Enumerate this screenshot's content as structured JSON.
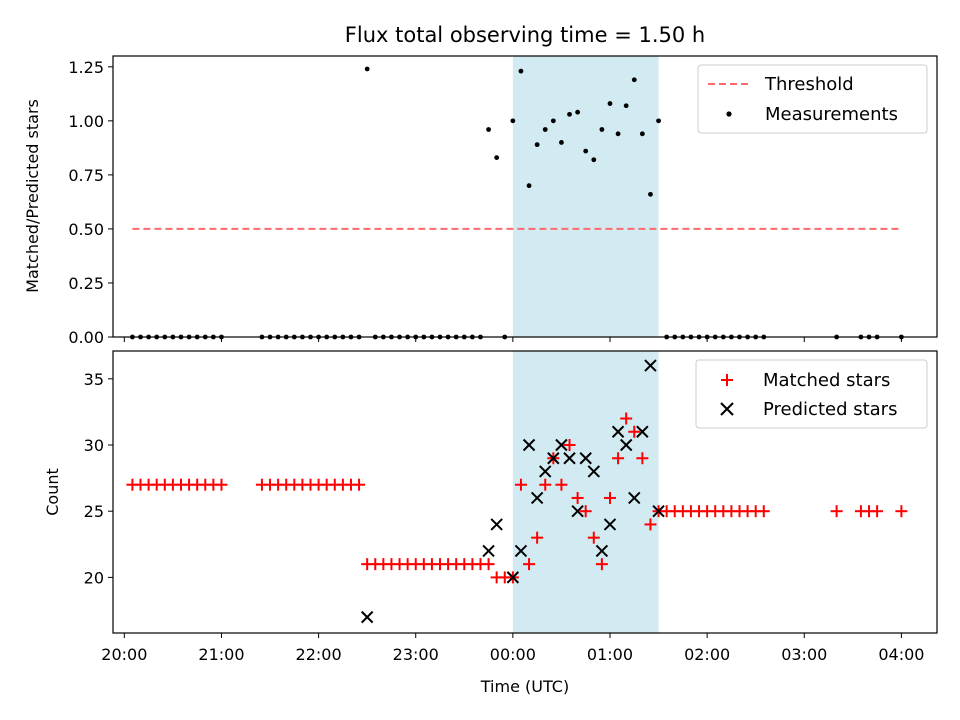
{
  "chart_data": [
    {
      "type": "scatter",
      "title": "Flux total observing time = 1.50 h",
      "ylabel": "Matched/Predicted stars",
      "xlabel": "",
      "xlim": [
        "19:53",
        "04:22"
      ],
      "ylim": [
        0,
        1.3
      ],
      "x_ticks": [
        "20:00",
        "21:00",
        "22:00",
        "23:00",
        "00:00",
        "01:00",
        "02:00",
        "03:00",
        "04:00"
      ],
      "y_ticks": [
        "0.00",
        "0.25",
        "0.50",
        "0.75",
        "1.00",
        "1.25"
      ],
      "legend_position": "top-right",
      "shaded_interval": {
        "start": "00:00",
        "end": "01:30",
        "color": "#add8e6"
      },
      "series": [
        {
          "name": "Threshold",
          "style": "dashed-line",
          "color": "#ff6b6b",
          "x": [
            "20:05",
            "04:00"
          ],
          "values": [
            0.5,
            0.5
          ]
        },
        {
          "name": "Measurements",
          "style": "dot",
          "color": "#000000",
          "x": [
            "20:05",
            "20:10",
            "20:15",
            "20:20",
            "20:25",
            "20:30",
            "20:35",
            "20:40",
            "20:45",
            "20:50",
            "20:55",
            "21:00",
            "21:25",
            "21:30",
            "21:35",
            "21:40",
            "21:45",
            "21:50",
            "21:55",
            "22:00",
            "22:05",
            "22:10",
            "22:15",
            "22:20",
            "22:25",
            "22:30",
            "22:35",
            "22:40",
            "22:45",
            "22:50",
            "22:55",
            "23:00",
            "23:05",
            "23:10",
            "23:15",
            "23:20",
            "23:25",
            "23:30",
            "23:35",
            "23:40",
            "23:45",
            "23:50",
            "23:55",
            "00:00",
            "00:05",
            "00:10",
            "00:15",
            "00:20",
            "00:25",
            "00:30",
            "00:35",
            "00:40",
            "00:45",
            "00:50",
            "00:55",
            "01:00",
            "01:05",
            "01:10",
            "01:15",
            "01:20",
            "01:25",
            "01:30",
            "01:35",
            "01:40",
            "01:45",
            "01:50",
            "01:55",
            "02:00",
            "02:05",
            "02:10",
            "02:15",
            "02:20",
            "02:25",
            "02:30",
            "02:35",
            "03:20",
            "03:35",
            "03:40",
            "03:45",
            "04:00"
          ],
          "values": [
            0,
            0,
            0,
            0,
            0,
            0,
            0,
            0,
            0,
            0,
            0,
            0,
            0,
            0,
            0,
            0,
            0,
            0,
            0,
            0,
            0,
            0,
            0,
            0,
            0,
            1.24,
            0,
            0,
            0,
            0,
            0,
            0,
            0,
            0,
            0,
            0,
            0,
            0,
            0,
            0,
            0.96,
            0.83,
            0,
            1.0,
            1.23,
            0.7,
            0.89,
            0.96,
            1.0,
            0.9,
            1.03,
            1.04,
            0.86,
            0.82,
            0.96,
            1.08,
            0.94,
            1.07,
            1.19,
            0.94,
            0.66,
            1.0,
            0,
            0,
            0,
            0,
            0,
            0,
            0,
            0,
            0,
            0,
            0,
            0,
            0,
            0,
            0,
            0,
            0,
            0
          ]
        }
      ]
    },
    {
      "type": "scatter",
      "title": "",
      "ylabel": "Count",
      "xlabel": "Time (UTC)",
      "xlim": [
        "19:53",
        "04:22"
      ],
      "ylim": [
        15.8,
        37.1
      ],
      "x_ticks": [
        "20:00",
        "21:00",
        "22:00",
        "23:00",
        "00:00",
        "01:00",
        "02:00",
        "03:00",
        "04:00"
      ],
      "y_ticks": [
        "20",
        "25",
        "30",
        "35"
      ],
      "legend_position": "top-right",
      "shaded_interval": {
        "start": "00:00",
        "end": "01:30",
        "color": "#add8e6"
      },
      "series": [
        {
          "name": "Matched stars",
          "marker": "plus",
          "color": "#ff0000",
          "x": [
            "20:05",
            "20:10",
            "20:15",
            "20:20",
            "20:25",
            "20:30",
            "20:35",
            "20:40",
            "20:45",
            "20:50",
            "20:55",
            "21:00",
            "21:25",
            "21:30",
            "21:35",
            "21:40",
            "21:45",
            "21:50",
            "21:55",
            "22:00",
            "22:05",
            "22:10",
            "22:15",
            "22:20",
            "22:25",
            "22:30",
            "22:35",
            "22:40",
            "22:45",
            "22:50",
            "22:55",
            "23:00",
            "23:05",
            "23:10",
            "23:15",
            "23:20",
            "23:25",
            "23:30",
            "23:35",
            "23:40",
            "23:45",
            "23:50",
            "23:55",
            "00:00",
            "00:05",
            "00:10",
            "00:15",
            "00:20",
            "00:25",
            "00:30",
            "00:35",
            "00:40",
            "00:45",
            "00:50",
            "00:55",
            "01:00",
            "01:05",
            "01:10",
            "01:15",
            "01:20",
            "01:25",
            "01:30",
            "01:35",
            "01:40",
            "01:45",
            "01:50",
            "01:55",
            "02:00",
            "02:05",
            "02:10",
            "02:15",
            "02:20",
            "02:25",
            "02:30",
            "02:35",
            "03:20",
            "03:35",
            "03:40",
            "03:45",
            "04:00"
          ],
          "values": [
            27,
            27,
            27,
            27,
            27,
            27,
            27,
            27,
            27,
            27,
            27,
            27,
            27,
            27,
            27,
            27,
            27,
            27,
            27,
            27,
            27,
            27,
            27,
            27,
            27,
            21,
            21,
            21,
            21,
            21,
            21,
            21,
            21,
            21,
            21,
            21,
            21,
            21,
            21,
            21,
            21,
            20,
            20,
            20,
            27,
            21,
            23,
            27,
            29,
            27,
            30,
            26,
            25,
            23,
            21,
            26,
            29,
            32,
            31,
            29,
            24,
            25,
            25,
            25,
            25,
            25,
            25,
            25,
            25,
            25,
            25,
            25,
            25,
            25,
            25,
            25,
            25,
            25,
            25,
            25
          ]
        },
        {
          "name": "Predicted stars",
          "marker": "x",
          "color": "#000000",
          "x": [
            "22:30",
            "23:45",
            "23:50",
            "00:00",
            "00:05",
            "00:10",
            "00:15",
            "00:20",
            "00:25",
            "00:30",
            "00:35",
            "00:40",
            "00:45",
            "00:50",
            "00:55",
            "01:00",
            "01:05",
            "01:10",
            "01:15",
            "01:20",
            "01:25",
            "01:30"
          ],
          "values": [
            17,
            22,
            24,
            20,
            22,
            30,
            26,
            28,
            29,
            30,
            29,
            25,
            29,
            28,
            22,
            24,
            31,
            30,
            26,
            31,
            36,
            25
          ]
        }
      ]
    }
  ]
}
